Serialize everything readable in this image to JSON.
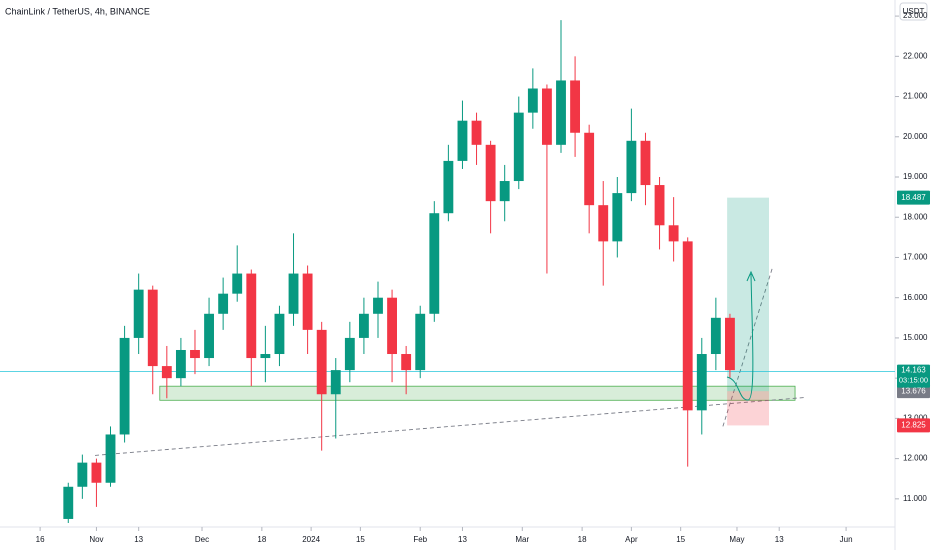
{
  "chart_data": {
    "type": "candlestick",
    "title": "ChainLink / TetherUS, 4h, BINANCE",
    "currency": "USDT",
    "up_color": "#089981",
    "down_color": "#f23645",
    "x": [
      8,
      12,
      16,
      20,
      24,
      28,
      32,
      36,
      40,
      44,
      48,
      52,
      56,
      60,
      64,
      68,
      72,
      76,
      80,
      84,
      88,
      92,
      96,
      100,
      104,
      108,
      112,
      116,
      120,
      124,
      128,
      132,
      136,
      140,
      144,
      148,
      152,
      156,
      160,
      164,
      168,
      172,
      176,
      180,
      184,
      188,
      192,
      196
    ],
    "open": [
      10.5,
      11.3,
      11.9,
      11.4,
      12.6,
      15.0,
      16.2,
      14.3,
      14.0,
      14.7,
      14.5,
      15.6,
      16.1,
      16.6,
      14.5,
      14.6,
      15.6,
      16.6,
      15.2,
      13.6,
      14.2,
      15.0,
      15.6,
      16.0,
      14.6,
      14.2,
      15.6,
      18.1,
      19.4,
      20.4,
      19.8,
      18.4,
      18.9,
      20.6,
      21.2,
      19.8,
      21.4,
      20.1,
      18.3,
      17.4,
      18.6,
      19.9,
      18.8,
      17.8,
      17.4,
      13.2,
      14.6,
      15.5
    ],
    "high": [
      11.4,
      12.1,
      12.0,
      12.8,
      15.3,
      16.6,
      16.3,
      14.8,
      15.0,
      15.2,
      16.0,
      16.5,
      17.3,
      16.7,
      15.3,
      15.8,
      17.6,
      16.8,
      15.4,
      14.5,
      15.4,
      16.0,
      16.4,
      16.2,
      14.8,
      15.8,
      18.4,
      19.8,
      20.9,
      20.6,
      19.9,
      19.3,
      21.0,
      21.7,
      21.3,
      22.9,
      22.0,
      20.3,
      18.9,
      19.0,
      20.7,
      20.1,
      19.0,
      18.5,
      17.5,
      15.0,
      16.0,
      15.6
    ],
    "low": [
      10.4,
      11.0,
      10.8,
      11.3,
      12.4,
      14.6,
      13.6,
      13.5,
      13.8,
      14.1,
      14.3,
      15.2,
      15.9,
      13.8,
      13.9,
      14.3,
      15.3,
      14.6,
      12.2,
      12.5,
      13.9,
      14.6,
      15.0,
      13.9,
      13.6,
      14.0,
      15.4,
      17.9,
      19.2,
      19.3,
      17.6,
      17.9,
      18.7,
      20.2,
      16.6,
      19.6,
      19.5,
      17.6,
      16.3,
      17.0,
      18.4,
      18.3,
      17.2,
      16.9,
      11.8,
      12.6,
      14.2,
      14.0
    ],
    "close": [
      11.3,
      11.9,
      11.4,
      12.6,
      15.0,
      16.2,
      14.3,
      14.0,
      14.7,
      14.5,
      15.6,
      16.1,
      16.6,
      14.5,
      14.6,
      15.6,
      16.6,
      15.2,
      13.6,
      14.2,
      15.0,
      15.6,
      16.0,
      14.6,
      14.2,
      15.6,
      18.1,
      19.4,
      20.4,
      19.8,
      18.4,
      18.9,
      20.6,
      21.2,
      19.8,
      21.4,
      20.1,
      18.3,
      17.4,
      18.6,
      19.9,
      18.8,
      17.8,
      17.4,
      13.2,
      14.6,
      15.5,
      14.2
    ],
    "xlim": [
      -11.4,
      242.9
    ],
    "ylim": [
      10.3,
      23.4
    ],
    "xticks": [
      {
        "value": 0,
        "label": "16"
      },
      {
        "value": 16,
        "label": "Nov"
      },
      {
        "value": 28,
        "label": "13"
      },
      {
        "value": 46,
        "label": "Dec"
      },
      {
        "value": 63,
        "label": "18"
      },
      {
        "value": 77,
        "label": "2024"
      },
      {
        "value": 91,
        "label": "15"
      },
      {
        "value": 108,
        "label": "Feb"
      },
      {
        "value": 120,
        "label": "13"
      },
      {
        "value": 137,
        "label": "Mar"
      },
      {
        "value": 154,
        "label": "18"
      },
      {
        "value": 168,
        "label": "Apr"
      },
      {
        "value": 182,
        "label": "15"
      },
      {
        "value": 198,
        "label": "May"
      },
      {
        "value": 210,
        "label": "13"
      },
      {
        "value": 229,
        "label": "Jun"
      }
    ],
    "yticks": [
      {
        "value": 11,
        "label": "11.000"
      },
      {
        "value": 12,
        "label": "12.000"
      },
      {
        "value": 13,
        "label": "13.000"
      },
      {
        "value": 14,
        "label": "14.000"
      },
      {
        "value": 15,
        "label": "15.000"
      },
      {
        "value": 16,
        "label": "16.000"
      },
      {
        "value": 17,
        "label": "17.000"
      },
      {
        "value": 18,
        "label": "18.000"
      },
      {
        "value": 19,
        "label": "19.000"
      },
      {
        "value": 20,
        "label": "20.000"
      },
      {
        "value": 21,
        "label": "21.000"
      },
      {
        "value": 22,
        "label": "22.000"
      },
      {
        "value": 23,
        "label": "23.000"
      }
    ],
    "last_price": {
      "value": 14.163,
      "countdown": "03:15:00"
    },
    "position": {
      "start": 195.2,
      "end": 207.1,
      "entry": 13.676,
      "target": 18.487,
      "stop": 12.825
    },
    "zone": {
      "start": 34,
      "end": 214.5,
      "low": 13.45,
      "high": 13.8
    },
    "trendlines": [
      {
        "x": [
          15.6,
          217.3
        ],
        "y": [
          12.08,
          13.52
        ]
      },
      {
        "x": [
          194,
          208.2
        ],
        "y": [
          12.8,
          16.78
        ]
      }
    ]
  }
}
